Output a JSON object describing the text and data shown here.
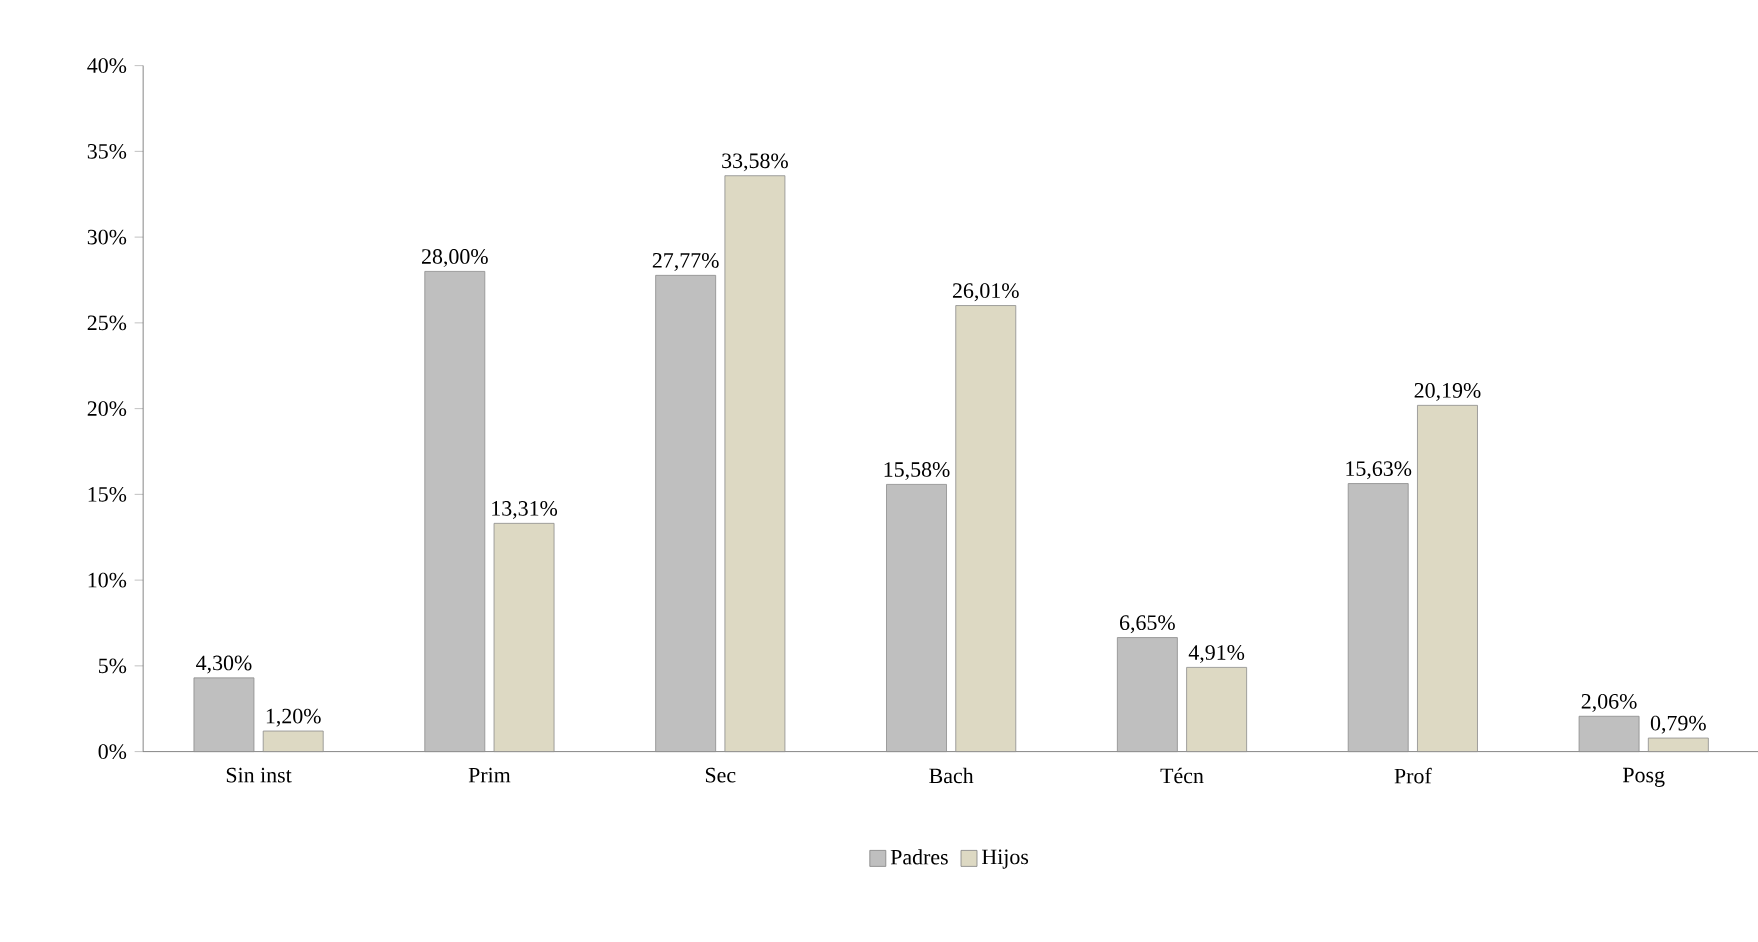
{
  "chart_data": {
    "type": "bar",
    "categories": [
      "Sin inst",
      "Prim",
      "Sec",
      "Bach",
      "Técn",
      "Prof",
      "Posg"
    ],
    "series": [
      {
        "name": "Padres",
        "color": "#bfbfbf",
        "values": [
          4.3,
          28.0,
          27.77,
          15.58,
          6.65,
          15.63,
          2.06
        ],
        "value_labels": [
          "4,30%",
          "28,00%",
          "27,77%",
          "15,58%",
          "6,65%",
          "15,63%",
          "2,06%"
        ]
      },
      {
        "name": "Hijos",
        "color": "#ddd9c3",
        "values": [
          1.2,
          13.31,
          33.58,
          26.01,
          4.91,
          20.19,
          0.79
        ],
        "value_labels": [
          "1,20%",
          "13,31%",
          "33,58%",
          "26,01%",
          "4,91%",
          "20,19%",
          "0,79%"
        ]
      }
    ],
    "ylim": [
      0,
      40
    ],
    "yticks": [
      {
        "value": 0,
        "label": "0%"
      },
      {
        "value": 5,
        "label": "5%"
      },
      {
        "value": 10,
        "label": "10%"
      },
      {
        "value": 15,
        "label": "15%"
      },
      {
        "value": 20,
        "label": "20%"
      },
      {
        "value": 25,
        "label": "25%"
      },
      {
        "value": 30,
        "label": "30%"
      },
      {
        "value": 35,
        "label": "35%"
      },
      {
        "value": 40,
        "label": "40%"
      }
    ],
    "grid": false,
    "legend": "bottom"
  }
}
